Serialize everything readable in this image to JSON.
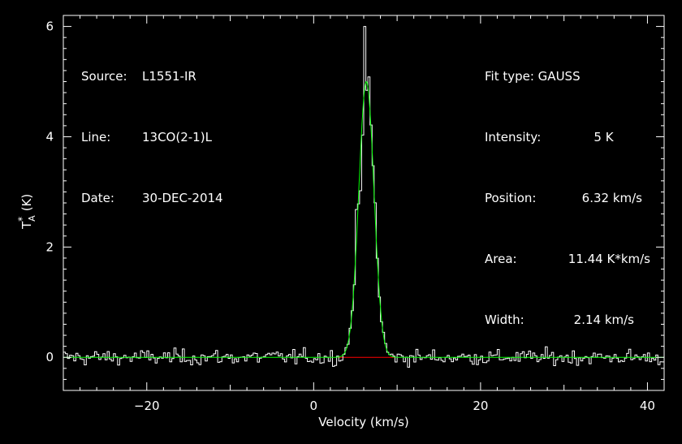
{
  "colors": {
    "background": "#000000",
    "axes": "#ffffff",
    "spectrum": "#ffffff",
    "fit": "#00ff00",
    "baseline": "#ff0000"
  },
  "info_left": {
    "source_label": "Source:",
    "source_value": "L1551-IR",
    "line_label": "Line:",
    "line_value": "13CO(2-1)L",
    "date_label": "Date:",
    "date_value": "30-DEC-2014"
  },
  "info_right": {
    "fit_label": "Fit type: GAUSS",
    "intensity_label": "Intensity:",
    "intensity_value": "5 K",
    "position_label": "Position:",
    "position_value": "6.32 km/s",
    "area_label": "Area:",
    "area_value": "11.44 K*km/s",
    "width_label": "Width:",
    "width_value": "2.14 km/s"
  },
  "chart_data": {
    "type": "line",
    "title": "",
    "xlabel": "Velocity (km/s)",
    "ylabel": "T",
    "ylabel_sup": "*",
    "ylabel_sub": "A",
    "ylabel_unit": "(K)",
    "xlim": [
      -30,
      42
    ],
    "ylim": [
      -0.6,
      6.2
    ],
    "xticks": [
      -20,
      0,
      20,
      40
    ],
    "yticks": [
      0,
      2,
      4,
      6
    ],
    "grid": false,
    "series": [
      {
        "kind": "spectrum-histogram",
        "x_range": [
          -30,
          42
        ],
        "channel_width": 0.25,
        "noise_rms": 0.07,
        "peak_max": 6.0
      },
      {
        "kind": "gaussian-fit",
        "amplitude": 5,
        "center": 6.32,
        "fwhm": 2.14,
        "area": 11.44
      },
      {
        "kind": "fit-baseline",
        "x_range": [
          2.9,
          9.7
        ],
        "value": 0
      }
    ]
  }
}
